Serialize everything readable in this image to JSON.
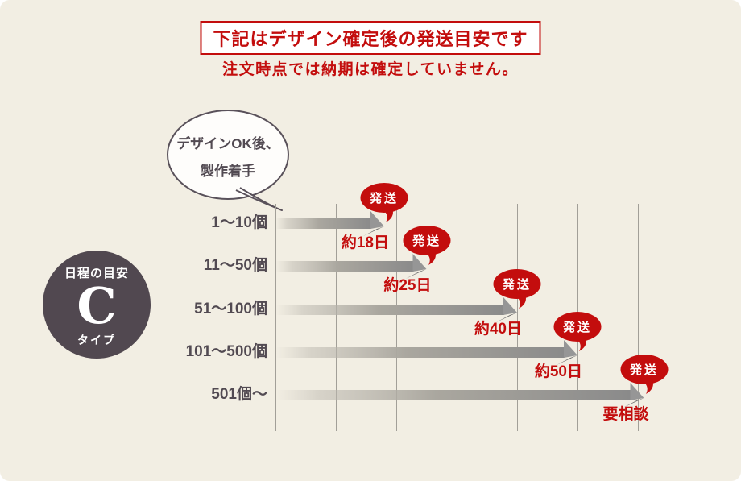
{
  "header": {
    "title": "下記はデザイン確定後の発送目安です",
    "subtitle": "注文時点では納期は確定していません。"
  },
  "bubble": {
    "line1": "デザインOK後、",
    "line2": "製作着手"
  },
  "badge": {
    "top_label": "日程の目安",
    "type_letter": "C",
    "bottom_label": "タイプ"
  },
  "chart_data": {
    "type": "bar",
    "orientation": "horizontal",
    "title": "下記はデザイン確定後の発送目安です",
    "categories": [
      "1〜10個",
      "11〜50個",
      "51〜100個",
      "101〜500個",
      "501個〜"
    ],
    "values_days": [
      18,
      25,
      40,
      50,
      61
    ],
    "value_labels": [
      "約18日",
      "約25日",
      "約40日",
      "約50日",
      "要相談"
    ],
    "marker_label": "発送",
    "x_axis": {
      "min": 0,
      "max": 60,
      "gridline_interval": 10,
      "unit": "days",
      "tick_labels_visible": false
    },
    "grid": true,
    "legend": "none",
    "note": "Last bar length (61) estimated from gridlines; its label reads 要相談 (needs consultation)."
  },
  "colors": {
    "background": "#f2eee3",
    "accent_red": "#c30d0d",
    "ink": "#524a52",
    "bar_gray": "#8a8a8a",
    "arrow_flap_gray": "#6e6e6e",
    "grid_gray": "#a29f98",
    "badge_bg": "#514850",
    "white": "#ffffff"
  }
}
